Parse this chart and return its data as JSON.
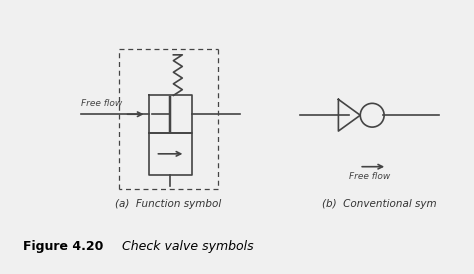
{
  "bg_color": "#f0f0f0",
  "line_color": "#444444",
  "title_bold": "Figure 4.20",
  "title_italic": "    Check valve symbols",
  "label_a": "(a)  Function symbol",
  "label_b": "(b)  Conventional sym",
  "free_flow_a": "Free flow",
  "free_flow_b": "Free flow",
  "lw": 1.2,
  "fig_width": 4.74,
  "fig_height": 2.74,
  "dpi": 100
}
